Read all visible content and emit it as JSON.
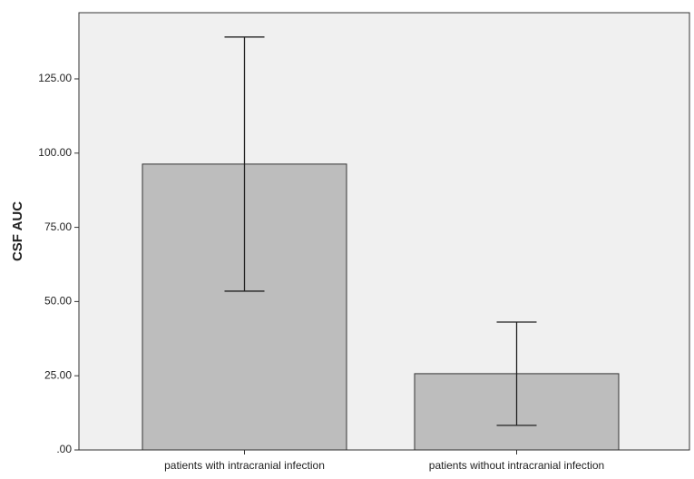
{
  "chart_data": {
    "type": "bar",
    "y_label": "CSF AUC",
    "categories": [
      "patients with intracranial infection",
      "patients without intracranial infection"
    ],
    "values": [
      96.3,
      25.7
    ],
    "errors": [
      42.8,
      17.4
    ],
    "color": "#bdbdbd",
    "ylim": [
      0,
      147.3
    ],
    "yticks": [
      {
        "value": 0,
        "label": ".00"
      },
      {
        "value": 25,
        "label": "25.00"
      },
      {
        "value": 50,
        "label": "50.00"
      },
      {
        "value": 75,
        "label": "75.00"
      },
      {
        "value": 100,
        "label": "100.00"
      },
      {
        "value": 125,
        "label": "125.00"
      }
    ],
    "grid": false
  }
}
